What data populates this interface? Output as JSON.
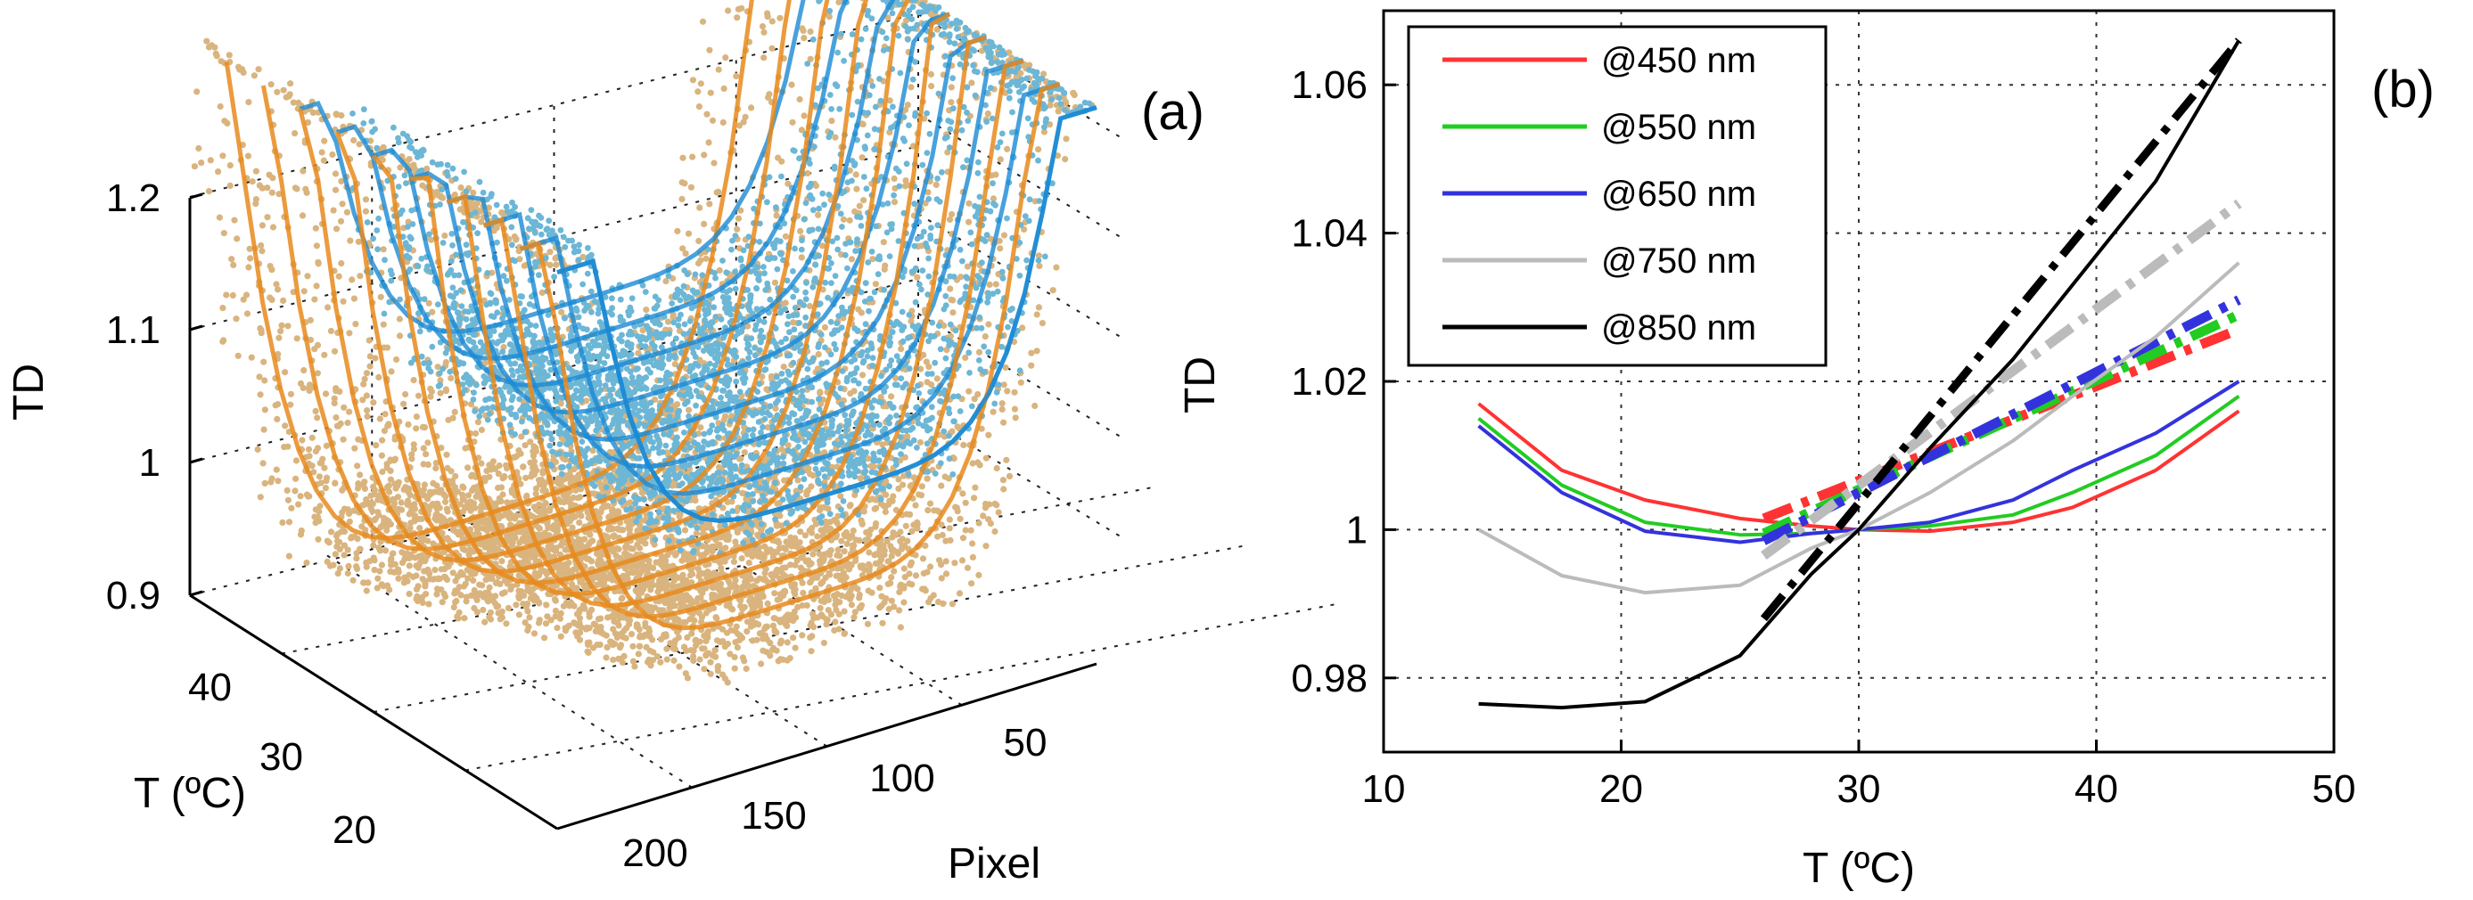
{
  "chart_data": [
    {
      "panel": "(a)",
      "type": "scatter",
      "view": "3d-surface-scatter",
      "zlabel": "TD",
      "ylabel": "T (ºC)",
      "xlabel": "Pixel",
      "z_ticks": [
        "0.9",
        "1",
        "1.1",
        "1.2"
      ],
      "t_ticks": [
        "40",
        "30",
        "20"
      ],
      "pixel_ticks": [
        "200",
        "150",
        "100",
        "50"
      ],
      "colors": {
        "cool_points": "#6cb6d6",
        "cool_surface": "#1a8ad4",
        "warm_points": "#d9b47e",
        "warm_surface": "#e8891c"
      }
    },
    {
      "panel": "(b)",
      "type": "line",
      "xlabel": "T (ºC)",
      "ylabel": "TD",
      "xlim": [
        10,
        50
      ],
      "ylim": [
        0.97,
        1.07
      ],
      "x_ticks": [
        10,
        20,
        30,
        40,
        50
      ],
      "y_ticks": [
        0.98,
        1,
        1.02,
        1.04,
        1.06
      ],
      "y_tick_labels": [
        "0.98",
        "1",
        "1.02",
        "1.04",
        "1.06"
      ],
      "grid": true,
      "legend_position": "top-left",
      "series": [
        {
          "name": "@450 nm",
          "color": "#ff3333",
          "x": [
            14,
            17.5,
            21,
            25,
            28,
            30,
            33,
            36.5,
            39,
            42.5,
            46
          ],
          "y": [
            1.017,
            1.008,
            1.004,
            1.0015,
            1.0005,
            1.0,
            0.9998,
            1.001,
            1.003,
            1.008,
            1.016
          ],
          "fit_x": [
            26,
            46
          ],
          "fit_y": [
            1.0015,
            1.027
          ]
        },
        {
          "name": "@550 nm",
          "color": "#22cc22",
          "x": [
            14,
            17.5,
            21,
            25,
            28,
            30,
            33,
            36.5,
            39,
            42.5,
            46
          ],
          "y": [
            1.015,
            1.006,
            1.001,
            0.9993,
            0.9995,
            1.0,
            1.0005,
            1.002,
            1.005,
            1.01,
            1.018
          ],
          "fit_x": [
            26,
            46
          ],
          "fit_y": [
            0.9995,
            1.029
          ]
        },
        {
          "name": "@650 nm",
          "color": "#3333dd",
          "x": [
            14,
            17.5,
            21,
            25,
            28,
            30,
            33,
            36.5,
            39,
            42.5,
            46
          ],
          "y": [
            1.014,
            1.005,
            0.9998,
            0.9983,
            0.9995,
            1.0,
            1.001,
            1.004,
            1.008,
            1.013,
            1.02
          ],
          "fit_x": [
            26,
            46
          ],
          "fit_y": [
            0.9985,
            1.031
          ]
        },
        {
          "name": "@750 nm",
          "color": "#bbbbbb",
          "x": [
            14,
            17.5,
            21,
            25,
            28,
            30,
            33,
            36.5,
            39,
            42.5,
            46
          ],
          "y": [
            1.0,
            0.9938,
            0.9915,
            0.9925,
            0.9975,
            1.0,
            1.005,
            1.012,
            1.018,
            1.026,
            1.036
          ],
          "fit_x": [
            26,
            46
          ],
          "fit_y": [
            0.9965,
            1.044
          ]
        },
        {
          "name": "@850 nm",
          "color": "#000000",
          "x": [
            14,
            17.5,
            21,
            25,
            28,
            30,
            33,
            36.5,
            39,
            42.5,
            46
          ],
          "y": [
            0.9765,
            0.976,
            0.9768,
            0.983,
            0.994,
            1.0,
            1.011,
            1.023,
            1.033,
            1.047,
            1.066
          ],
          "fit_x": [
            26,
            46
          ],
          "fit_y": [
            0.988,
            1.066
          ]
        }
      ]
    }
  ]
}
